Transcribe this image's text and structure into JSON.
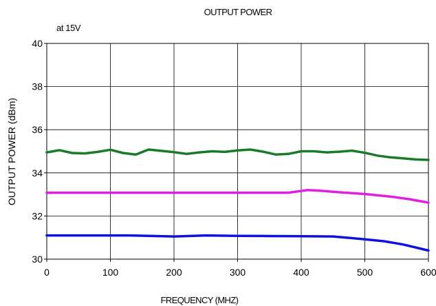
{
  "chart_data": {
    "type": "line",
    "title": "OUTPUT POWER",
    "annotation": "at 15V",
    "xlabel": "FREQUENCY (MHZ)",
    "ylabel": "OUTPUT POWER (dBm)",
    "xlim": [
      0,
      600
    ],
    "ylim": [
      30,
      40
    ],
    "x_ticks": [
      "0",
      "100",
      "200",
      "300",
      "400",
      "500",
      "600"
    ],
    "y_ticks": [
      "30",
      "32",
      "34",
      "36",
      "38",
      "40"
    ],
    "grid": true,
    "legend": "none",
    "series": [
      {
        "color": "#1a7a2a",
        "points": [
          [
            0,
            34.95
          ],
          [
            20,
            35.05
          ],
          [
            40,
            34.92
          ],
          [
            60,
            34.9
          ],
          [
            80,
            34.97
          ],
          [
            100,
            35.07
          ],
          [
            120,
            34.92
          ],
          [
            140,
            34.85
          ],
          [
            160,
            35.08
          ],
          [
            180,
            35.02
          ],
          [
            200,
            34.96
          ],
          [
            220,
            34.88
          ],
          [
            240,
            34.95
          ],
          [
            260,
            35.0
          ],
          [
            280,
            34.97
          ],
          [
            300,
            35.04
          ],
          [
            320,
            35.08
          ],
          [
            340,
            34.98
          ],
          [
            360,
            34.85
          ],
          [
            380,
            34.88
          ],
          [
            400,
            35.0
          ],
          [
            420,
            35.0
          ],
          [
            440,
            34.95
          ],
          [
            460,
            34.98
          ],
          [
            480,
            35.03
          ],
          [
            500,
            34.93
          ],
          [
            520,
            34.8
          ],
          [
            540,
            34.72
          ],
          [
            560,
            34.67
          ],
          [
            580,
            34.62
          ],
          [
            600,
            34.6
          ]
        ]
      },
      {
        "color": "#e020e0",
        "points": [
          [
            0,
            33.08
          ],
          [
            100,
            33.08
          ],
          [
            200,
            33.08
          ],
          [
            300,
            33.08
          ],
          [
            380,
            33.08
          ],
          [
            410,
            33.2
          ],
          [
            430,
            33.17
          ],
          [
            460,
            33.1
          ],
          [
            500,
            33.02
          ],
          [
            540,
            32.9
          ],
          [
            570,
            32.78
          ],
          [
            600,
            32.62
          ]
        ]
      },
      {
        "color": "#1010e0",
        "points": [
          [
            0,
            31.1
          ],
          [
            50,
            31.1
          ],
          [
            100,
            31.1
          ],
          [
            130,
            31.1
          ],
          [
            160,
            31.08
          ],
          [
            200,
            31.05
          ],
          [
            250,
            31.1
          ],
          [
            300,
            31.08
          ],
          [
            350,
            31.07
          ],
          [
            400,
            31.06
          ],
          [
            450,
            31.05
          ],
          [
            470,
            31.0
          ],
          [
            500,
            30.92
          ],
          [
            530,
            30.83
          ],
          [
            560,
            30.68
          ],
          [
            600,
            30.4
          ]
        ]
      }
    ]
  }
}
